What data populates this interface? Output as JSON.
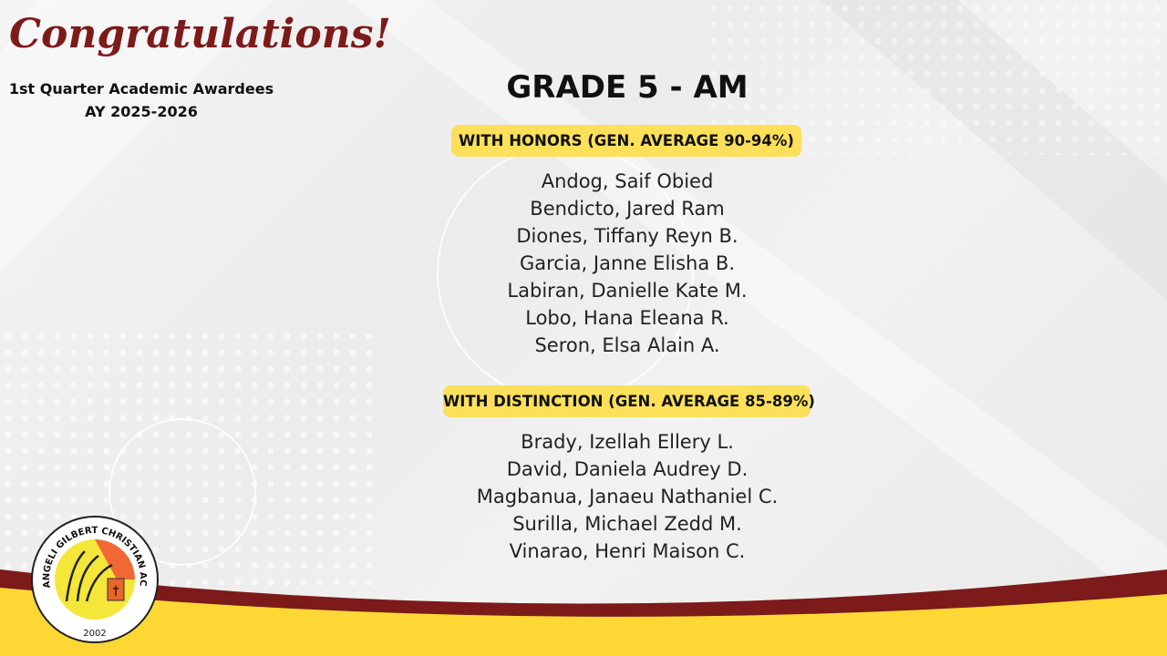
{
  "header": {
    "title": "Congratulations!",
    "subtitle": "1st Quarter Academic Awardees",
    "academic_year": "AY 2025-2026"
  },
  "main": {
    "grade": "GRADE 5 - AM",
    "sections": [
      {
        "label": "WITH HONORS (GEN. AVERAGE 90-94%)",
        "names": [
          "Andog, Saif Obied",
          "Bendicto, Jared Ram",
          "Diones, Tiffany Reyn B.",
          "Garcia, Janne Elisha B.",
          "Labiran, Danielle Kate M.",
          "Lobo, Hana Eleana R.",
          "Seron, Elsa Alain A."
        ]
      },
      {
        "label": "WITH DISTINCTION (GEN. AVERAGE 85-89%)",
        "names": [
          "Brady, Izellah Ellery L.",
          "David, Daniela Audrey D.",
          "Magbanua, Janaeu Nathaniel C.",
          "Surilla, Michael Zedd M.",
          "Vinarao, Henri Maison C."
        ]
      }
    ]
  },
  "logo": {
    "name": "ANGELI GILBERT CHRISTIAN ACADEMY",
    "year": "2002"
  },
  "colors": {
    "maroon": "#7d1a1a",
    "yellow": "#fdd835",
    "badge": "#fde05a"
  }
}
